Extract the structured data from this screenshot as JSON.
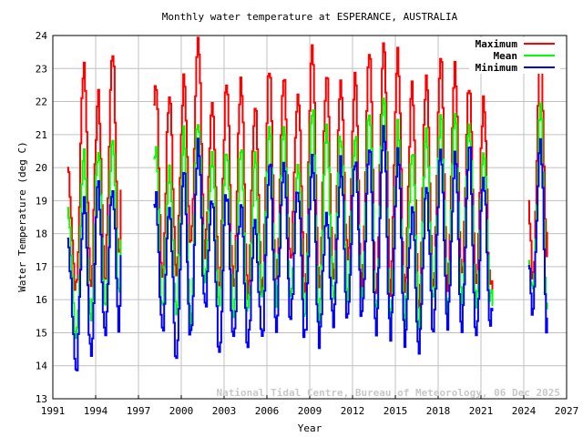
{
  "chart_data": {
    "type": "line",
    "title": "Monthly water temperature at ESPERANCE, AUSTRALIA",
    "xlabel": "Year",
    "ylabel": "Water Temperature (deg C)",
    "xlim": [
      1991,
      2027
    ],
    "ylim": [
      13,
      24
    ],
    "xticks": [
      "1991",
      "1994",
      "1997",
      "2000",
      "2003",
      "2006",
      "2009",
      "2012",
      "2015",
      "2018",
      "2021",
      "2024",
      "2027"
    ],
    "yticks": [
      "13",
      "14",
      "15",
      "16",
      "17",
      "18",
      "19",
      "20",
      "21",
      "22",
      "23",
      "24"
    ],
    "grid": true,
    "legend_position": "top-right",
    "series": [
      {
        "name": "Maximum",
        "color": "#ff0000"
      },
      {
        "name": "Mean",
        "color": "#00ff00"
      },
      {
        "name": "Minimum",
        "color": "#0000ff"
      }
    ],
    "knot_columns": [
      "year",
      "Maximum",
      "Mean",
      "Minimum"
    ],
    "segments": [
      [
        [
          1992.0,
          20.0,
          18.8,
          17.8
        ],
        [
          1992.6,
          16.3,
          15.0,
          13.9
        ],
        [
          1993.15,
          23.2,
          20.3,
          19.0
        ],
        [
          1993.62,
          16.5,
          15.3,
          14.4
        ],
        [
          1994.15,
          22.1,
          20.6,
          19.4
        ],
        [
          1994.62,
          16.7,
          15.6,
          15.1
        ],
        [
          1995.15,
          23.6,
          21.0,
          19.5
        ],
        [
          1995.62,
          17.1,
          16.0,
          15.2
        ],
        [
          1995.75,
          19.1,
          17.9,
          17.4
        ]
      ],
      [
        [
          1998.05,
          22.2,
          20.4,
          19.1
        ],
        [
          1998.2,
          22.4,
          20.4,
          19.1
        ],
        [
          1998.62,
          16.6,
          15.7,
          15.0
        ],
        [
          1999.15,
          22.4,
          20.0,
          18.8
        ],
        [
          1999.62,
          16.8,
          15.7,
          14.2
        ],
        [
          2000.15,
          22.6,
          21.0,
          20.0
        ],
        [
          2000.62,
          17.5,
          15.3,
          14.8
        ],
        [
          2001.15,
          23.7,
          21.6,
          20.6
        ],
        [
          2001.62,
          17.5,
          16.8,
          15.8
        ],
        [
          2002.15,
          21.8,
          20.5,
          19.0
        ],
        [
          2002.62,
          16.5,
          15.7,
          14.5
        ],
        [
          2003.15,
          22.7,
          20.7,
          19.3
        ],
        [
          2003.62,
          16.4,
          15.3,
          14.8
        ],
        [
          2004.15,
          22.6,
          20.6,
          18.8
        ],
        [
          2004.62,
          16.2,
          15.5,
          14.7
        ],
        [
          2005.15,
          22.0,
          20.2,
          18.2
        ],
        [
          2005.62,
          16.4,
          15.9,
          14.7
        ],
        [
          2006.15,
          23.1,
          21.1,
          20.1
        ],
        [
          2006.62,
          16.5,
          16.0,
          15.3
        ],
        [
          2007.15,
          22.8,
          21.4,
          19.9
        ],
        [
          2007.62,
          17.0,
          16.1,
          15.4
        ],
        [
          2008.15,
          22.4,
          20.3,
          19.5
        ],
        [
          2008.62,
          16.3,
          15.5,
          14.8
        ],
        [
          2009.15,
          23.6,
          21.8,
          20.4
        ],
        [
          2009.62,
          16.3,
          15.5,
          14.8
        ],
        [
          2010.15,
          22.8,
          21.1,
          18.4
        ],
        [
          2010.62,
          16.7,
          15.9,
          15.2
        ],
        [
          2011.15,
          22.4,
          21.1,
          20.1
        ],
        [
          2011.62,
          17.3,
          16.2,
          15.4
        ],
        [
          2012.15,
          22.6,
          21.0,
          20.2
        ],
        [
          2012.62,
          16.5,
          15.9,
          15.5
        ],
        [
          2013.15,
          23.6,
          21.8,
          20.5
        ],
        [
          2013.62,
          16.2,
          15.7,
          15.2
        ],
        [
          2014.15,
          23.9,
          22.1,
          21.3
        ],
        [
          2014.62,
          16.4,
          15.6,
          14.9
        ],
        [
          2015.15,
          23.4,
          21.2,
          20.5
        ],
        [
          2015.62,
          16.3,
          15.4,
          14.8
        ],
        [
          2016.15,
          22.5,
          20.6,
          18.6
        ],
        [
          2016.62,
          15.9,
          15.3,
          14.5
        ],
        [
          2017.15,
          22.9,
          21.1,
          19.3
        ],
        [
          2017.62,
          16.5,
          15.8,
          15.1
        ],
        [
          2018.15,
          23.3,
          21.7,
          20.4
        ],
        [
          2018.62,
          16.4,
          15.8,
          15.3
        ],
        [
          2019.15,
          23.0,
          21.5,
          20.3
        ],
        [
          2019.62,
          16.7,
          15.9,
          15.2
        ],
        [
          2020.15,
          22.6,
          21.3,
          20.6
        ],
        [
          2020.62,
          16.6,
          15.8,
          15.1
        ],
        [
          2021.15,
          22.0,
          20.5,
          19.7
        ],
        [
          2021.62,
          16.3,
          16.0,
          15.0
        ],
        [
          2021.8,
          16.3,
          16.0,
          15.8
        ]
      ],
      [
        [
          2024.3,
          18.9,
          17.4,
          16.9
        ],
        [
          2024.6,
          16.5,
          16.2,
          15.7
        ],
        [
          2025.15,
          23.5,
          21.7,
          20.7
        ],
        [
          2025.6,
          17.4,
          15.5,
          14.8
        ],
        [
          2025.7,
          19.1,
          17.9,
          16.5
        ]
      ]
    ],
    "annotation": "National Tidal Centre, Bureau of Meteorology, 06 Dec 2025"
  }
}
